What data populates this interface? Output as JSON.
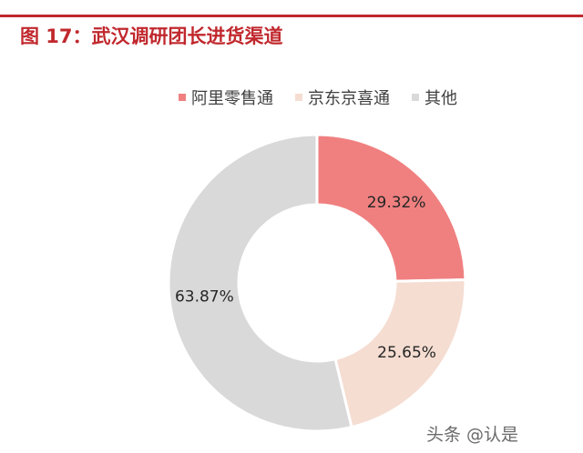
{
  "figure": {
    "title": "图 17：武汉调研团长进货渠道",
    "watermark": "头条 @认是"
  },
  "chart_data": {
    "type": "pie",
    "donut": true,
    "legend_position": "top",
    "categories": [
      "阿里零售通",
      "京东京喜通",
      "其他"
    ],
    "values": [
      29.32,
      25.65,
      63.87
    ],
    "labels": [
      "29.32%",
      "25.65%",
      "63.87%"
    ],
    "colors": [
      "#f08080",
      "#f5ddd2",
      "#d9d9d9"
    ]
  }
}
